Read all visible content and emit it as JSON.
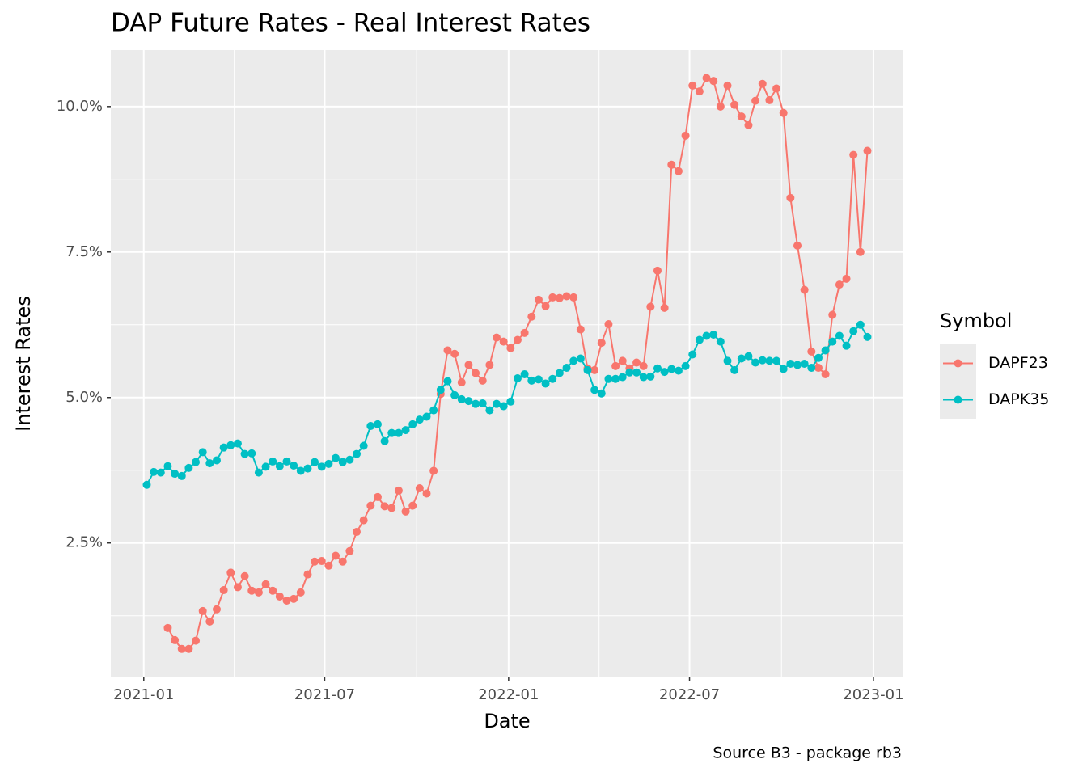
{
  "chart_data": {
    "type": "line",
    "title": "DAP Future Rates - Real Interest Rates",
    "x_label": "Date",
    "y_label": "Interest Rates",
    "caption": "Source B3 - package rb3",
    "legend_title": "Symbol",
    "legend_position": "right",
    "grid": true,
    "markers": true,
    "xlim": [
      "2020-11-29",
      "2023-01-31"
    ],
    "xticks": [
      {
        "value": "2021-01-01",
        "label": "2021-01"
      },
      {
        "value": "2021-07-01",
        "label": "2021-07"
      },
      {
        "value": "2022-01-01",
        "label": "2022-01"
      },
      {
        "value": "2022-07-01",
        "label": "2022-07"
      },
      {
        "value": "2023-01-01",
        "label": "2023-01"
      }
    ],
    "ylim": [
      0.19,
      10.97
    ],
    "yticks": [
      {
        "value": 2.5,
        "label": "2.5%"
      },
      {
        "value": 5,
        "label": "5.0%"
      },
      {
        "value": 7.5,
        "label": "7.5%"
      },
      {
        "value": 10,
        "label": "10.0%"
      }
    ],
    "x": [
      "2021-01-04",
      "2021-01-11",
      "2021-01-18",
      "2021-01-25",
      "2021-02-01",
      "2021-02-08",
      "2021-02-15",
      "2021-02-22",
      "2021-03-01",
      "2021-03-08",
      "2021-03-15",
      "2021-03-22",
      "2021-03-29",
      "2021-04-05",
      "2021-04-12",
      "2021-04-19",
      "2021-04-26",
      "2021-05-03",
      "2021-05-10",
      "2021-05-17",
      "2021-05-24",
      "2021-05-31",
      "2021-06-07",
      "2021-06-14",
      "2021-06-21",
      "2021-06-28",
      "2021-07-05",
      "2021-07-12",
      "2021-07-19",
      "2021-07-26",
      "2021-08-02",
      "2021-08-09",
      "2021-08-16",
      "2021-08-23",
      "2021-08-30",
      "2021-09-06",
      "2021-09-13",
      "2021-09-20",
      "2021-09-27",
      "2021-10-04",
      "2021-10-11",
      "2021-10-18",
      "2021-10-25",
      "2021-11-01",
      "2021-11-08",
      "2021-11-15",
      "2021-11-22",
      "2021-11-29",
      "2021-12-06",
      "2021-12-13",
      "2021-12-20",
      "2021-12-27",
      "2022-01-03",
      "2022-01-10",
      "2022-01-17",
      "2022-01-24",
      "2022-01-31",
      "2022-02-07",
      "2022-02-14",
      "2022-02-21",
      "2022-02-28",
      "2022-03-07",
      "2022-03-14",
      "2022-03-21",
      "2022-03-28",
      "2022-04-04",
      "2022-04-11",
      "2022-04-18",
      "2022-04-25",
      "2022-05-02",
      "2022-05-09",
      "2022-05-16",
      "2022-05-23",
      "2022-05-30",
      "2022-06-06",
      "2022-06-13",
      "2022-06-20",
      "2022-06-27",
      "2022-07-04",
      "2022-07-11",
      "2022-07-18",
      "2022-07-25",
      "2022-08-01",
      "2022-08-08",
      "2022-08-15",
      "2022-08-22",
      "2022-08-29",
      "2022-09-05",
      "2022-09-12",
      "2022-09-19",
      "2022-09-26",
      "2022-10-03",
      "2022-10-10",
      "2022-10-17",
      "2022-10-24",
      "2022-10-31",
      "2022-11-07",
      "2022-11-14",
      "2022-11-21",
      "2022-11-28",
      "2022-12-05",
      "2022-12-12",
      "2022-12-19",
      "2022-12-26"
    ],
    "series": [
      {
        "name": "DAPF23",
        "color": "#F8766D",
        "values": [
          null,
          null,
          null,
          1.04,
          0.83,
          0.68,
          0.68,
          0.82,
          1.33,
          1.15,
          1.36,
          1.69,
          1.99,
          1.74,
          1.93,
          1.68,
          1.65,
          1.79,
          1.68,
          1.58,
          1.51,
          1.54,
          1.65,
          1.96,
          2.18,
          2.19,
          2.11,
          2.28,
          2.18,
          2.36,
          2.69,
          2.89,
          3.14,
          3.29,
          3.13,
          3.1,
          3.4,
          3.04,
          3.14,
          3.44,
          3.35,
          3.74,
          5.06,
          5.81,
          5.75,
          5.26,
          5.56,
          5.42,
          5.29,
          5.56,
          6.03,
          5.96,
          5.85,
          5.99,
          6.11,
          6.39,
          6.68,
          6.57,
          6.72,
          6.71,
          6.74,
          6.72,
          6.17,
          5.5,
          5.47,
          5.94,
          6.26,
          5.54,
          5.63,
          5.5,
          5.6,
          5.54,
          6.56,
          7.18,
          6.54,
          9.0,
          8.89,
          9.5,
          10.36,
          10.26,
          10.49,
          10.44,
          10.0,
          10.36,
          10.03,
          9.83,
          9.68,
          10.1,
          10.39,
          10.11,
          10.31,
          9.89,
          8.43,
          7.61,
          6.85,
          5.79,
          5.51,
          5.4,
          6.42,
          6.94,
          7.04,
          9.17,
          7.5,
          9.24
        ]
      },
      {
        "name": "DAPK35",
        "color": "#00BFC4",
        "values": [
          3.5,
          3.72,
          3.71,
          3.82,
          3.69,
          3.65,
          3.79,
          3.89,
          4.06,
          3.87,
          3.92,
          4.14,
          4.18,
          4.21,
          4.03,
          4.04,
          3.71,
          3.81,
          3.9,
          3.82,
          3.9,
          3.83,
          3.74,
          3.78,
          3.89,
          3.81,
          3.86,
          3.96,
          3.89,
          3.93,
          4.03,
          4.17,
          4.51,
          4.54,
          4.25,
          4.39,
          4.39,
          4.44,
          4.54,
          4.62,
          4.67,
          4.78,
          5.13,
          5.28,
          5.04,
          4.97,
          4.94,
          4.89,
          4.9,
          4.78,
          4.89,
          4.85,
          4.93,
          5.33,
          5.4,
          5.29,
          5.31,
          5.24,
          5.32,
          5.42,
          5.51,
          5.63,
          5.67,
          5.47,
          5.13,
          5.07,
          5.32,
          5.32,
          5.35,
          5.43,
          5.43,
          5.35,
          5.36,
          5.5,
          5.44,
          5.49,
          5.46,
          5.54,
          5.74,
          5.99,
          6.06,
          6.08,
          5.96,
          5.63,
          5.47,
          5.67,
          5.71,
          5.6,
          5.64,
          5.63,
          5.63,
          5.49,
          5.58,
          5.56,
          5.58,
          5.51,
          5.68,
          5.81,
          5.96,
          6.06,
          5.89,
          6.14,
          6.25,
          6.04
        ]
      }
    ]
  }
}
